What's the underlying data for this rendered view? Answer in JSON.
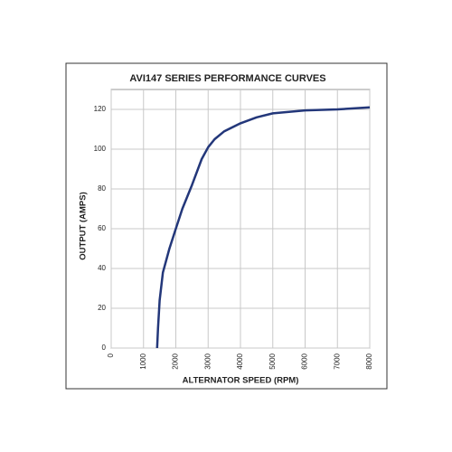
{
  "chart_data": {
    "type": "line",
    "title": "AVI147 SERIES PERFORMANCE CURVES",
    "x_label": "ALTERNATOR SPEED (RPM)",
    "y_label": "OUTPUT (AMPS)",
    "x": [
      1420,
      1450,
      1500,
      1600,
      1800,
      2000,
      2200,
      2500,
      2800,
      3000,
      3200,
      3500,
      4000,
      4500,
      5000,
      6000,
      7000,
      8000
    ],
    "series": [
      {
        "name": "AVI147",
        "color": "#23377a",
        "values": [
          0,
          10,
          24,
          38,
          50,
          60,
          70,
          82,
          95,
          101,
          105,
          109,
          113,
          116,
          118,
          119.5,
          120,
          121
        ]
      }
    ],
    "xlim": [
      0,
      8000
    ],
    "xticks": [
      0,
      1000,
      2000,
      3000,
      4000,
      5000,
      6000,
      7000,
      8000
    ],
    "ylim": [
      0,
      130
    ],
    "yticks": [
      0,
      20,
      40,
      60,
      80,
      100,
      120
    ],
    "grid": true
  }
}
